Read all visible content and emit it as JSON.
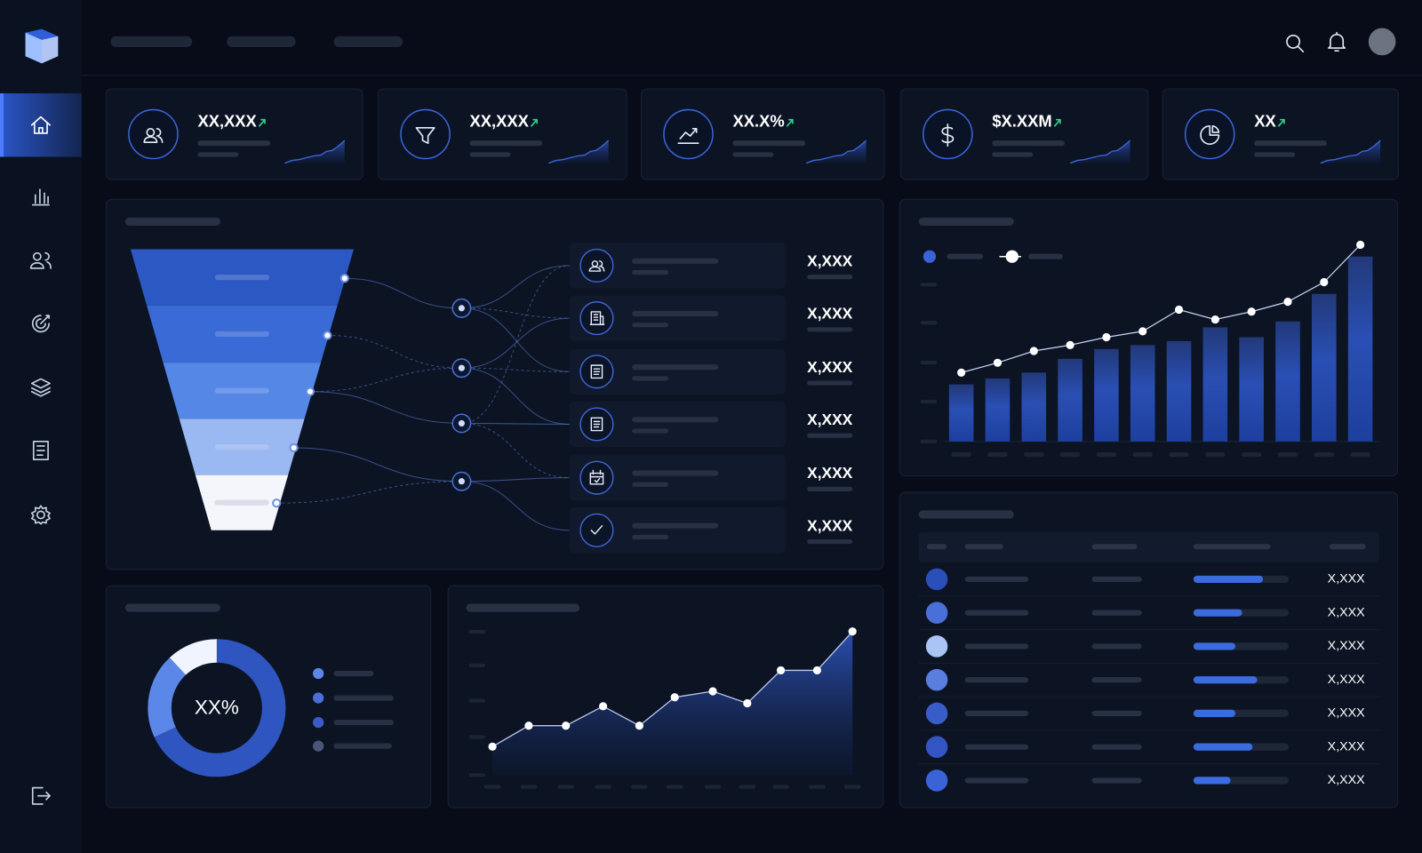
{
  "kpis": [
    {
      "value": "XX,XXX"
    },
    {
      "value": "XX,XXX"
    },
    {
      "value": "XX.X%"
    },
    {
      "value": "$X.XXM"
    },
    {
      "value": "XX"
    }
  ],
  "funnel": {
    "items": [
      {
        "value": "X,XXX"
      },
      {
        "value": "X,XXX"
      },
      {
        "value": "X,XXX"
      },
      {
        "value": "X,XXX"
      },
      {
        "value": "X,XXX"
      },
      {
        "value": "X,XXX"
      }
    ]
  },
  "bar_chart": {
    "ylim": [
      0,
      100
    ],
    "bars": [
      29,
      32,
      35,
      42,
      47,
      49,
      51,
      58,
      53,
      61,
      75,
      94
    ],
    "line": [
      35,
      40,
      46,
      49,
      53,
      56,
      67,
      62,
      66,
      71,
      81,
      100
    ]
  },
  "donut": {
    "label": "XX%",
    "segments": [
      {
        "value": 68,
        "color": "#2f56c0"
      },
      {
        "value": 20,
        "color": "#5b87e8"
      },
      {
        "value": 12,
        "color": "#f0f4ff"
      }
    ]
  },
  "area_chart": {
    "ylim": [
      0,
      100
    ],
    "values": [
      19,
      33,
      33,
      46,
      33,
      52,
      56,
      48,
      70,
      70,
      96
    ]
  },
  "table": {
    "rows": [
      {
        "progress": 73,
        "value": "X,XXX",
        "color": "#2b4fb8"
      },
      {
        "progress": 51,
        "value": "X,XXX",
        "color": "#4a6fd8"
      },
      {
        "progress": 44,
        "value": "X,XXX",
        "color": "#a9c4f5"
      },
      {
        "progress": 67,
        "value": "X,XXX",
        "color": "#5a7de0"
      },
      {
        "progress": 44,
        "value": "X,XXX",
        "color": "#3a5cc8"
      },
      {
        "progress": 62,
        "value": "X,XXX",
        "color": "#3355c4"
      },
      {
        "progress": 39,
        "value": "X,XXX",
        "color": "#3a63d8"
      }
    ]
  }
}
